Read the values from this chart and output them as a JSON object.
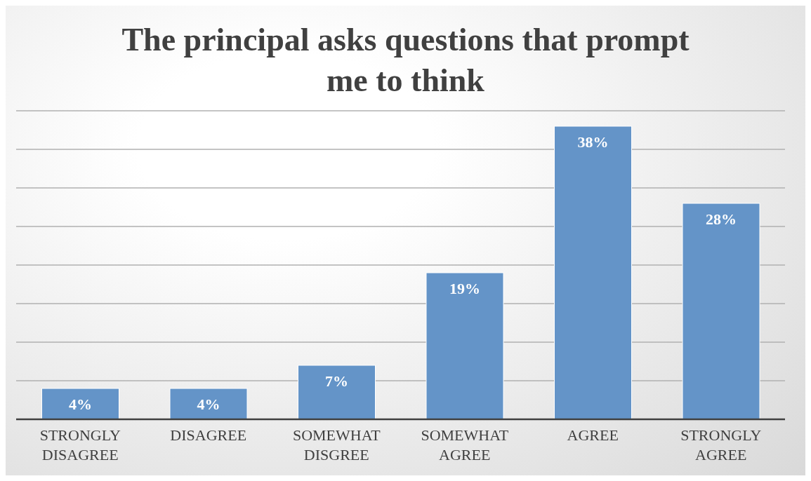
{
  "chart_data": {
    "type": "bar",
    "title": "The principal asks questions that prompt me to think",
    "categories": [
      "STRONGLY DISAGREE",
      "DISAGREE",
      "SOMEWHAT DISGREE",
      "SOMEWHAT AGREE",
      "AGREE",
      "STRONGLY AGREE"
    ],
    "values": [
      4,
      4,
      7,
      19,
      38,
      28
    ],
    "value_labels": [
      "4%",
      "4%",
      "7%",
      "19%",
      "38%",
      "28%"
    ],
    "color": "#6494c8",
    "grid": "y",
    "tick_labels": "x"
  }
}
